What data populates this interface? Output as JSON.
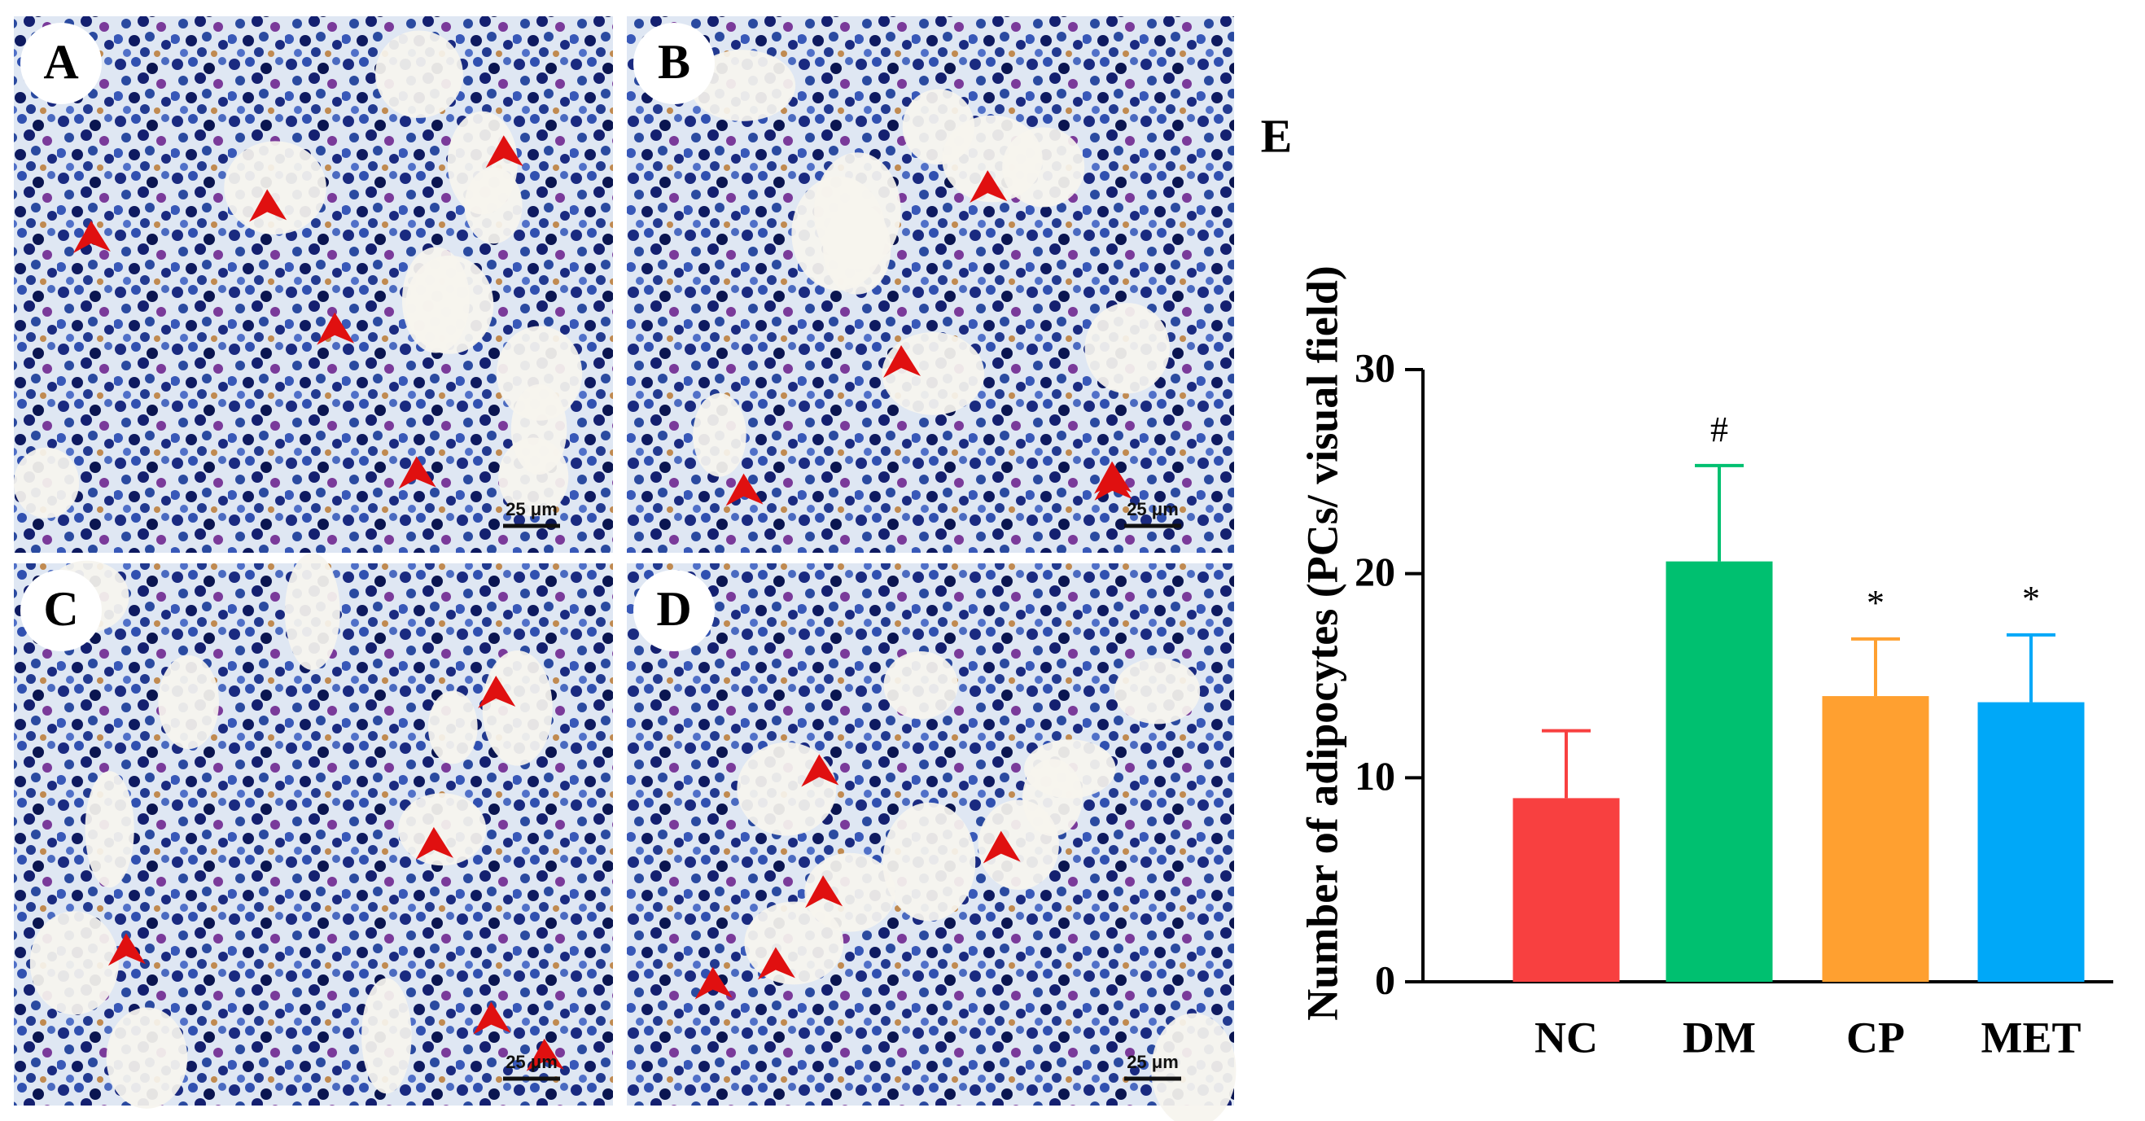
{
  "panels": [
    {
      "label": "A",
      "scale_bar": "25 μm"
    },
    {
      "label": "B",
      "scale_bar": "25 μm"
    },
    {
      "label": "C",
      "scale_bar": "25 μm"
    },
    {
      "label": "D",
      "scale_bar": "25 μm"
    }
  ],
  "chart_data": {
    "type": "bar",
    "panel_label": "E",
    "ylabel": "Number of adipocytes (PCs/ visual field)",
    "categories": [
      "NC",
      "DM",
      "CP",
      "MET"
    ],
    "values": [
      9.0,
      20.6,
      14.0,
      13.7
    ],
    "errors": [
      3.3,
      4.7,
      2.8,
      3.3
    ],
    "annotations": [
      null,
      "#",
      "*",
      "*"
    ],
    "colors": [
      "#f84040",
      "#00c070",
      "#ffa030",
      "#00a8f8"
    ],
    "ylim": [
      0,
      30
    ],
    "yticks": [
      0,
      10,
      20,
      30
    ]
  }
}
